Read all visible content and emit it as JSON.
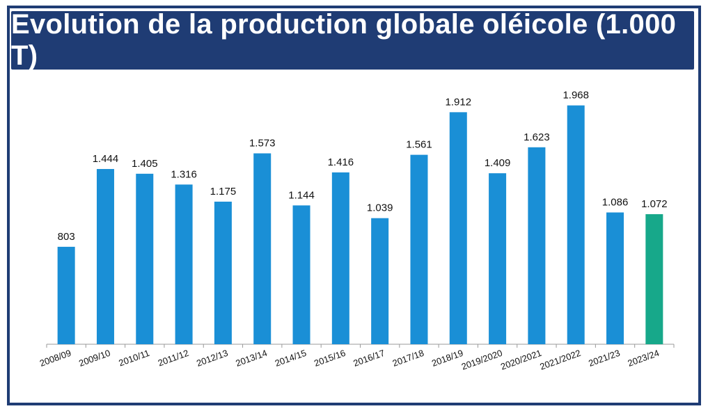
{
  "chart_data": {
    "type": "bar",
    "title": "Evolution de la production globale oléicole (1.000 T)",
    "xlabel": "",
    "ylabel": "",
    "ylim": [
      0,
      2000
    ],
    "grid": false,
    "categories": [
      "2008/09",
      "2009/10",
      "2010/11",
      "2011/12",
      "2012/13",
      "2013/14",
      "2014/15",
      "2015/16",
      "2016/17",
      "2017/18",
      "2018/19",
      "2019/2020",
      "2020/2021",
      "2021/2022",
      "2021/23",
      "2023/24"
    ],
    "values": [
      803,
      1444,
      1405,
      1316,
      1175,
      1573,
      1144,
      1416,
      1039,
      1561,
      1912,
      1409,
      1623,
      1968,
      1086,
      1072
    ],
    "value_labels": [
      "803",
      "1.444",
      "1.405",
      "1.316",
      "1.175",
      "1.573",
      "1.144",
      "1.416",
      "1.039",
      "1.561",
      "1.912",
      "1.409",
      "1.623",
      "1.968",
      "1.086",
      "1.072"
    ],
    "colors": {
      "bar": "#1a8fd6",
      "highlight": "#17a88a",
      "title_background": "#1f3c74",
      "frame": "#1f3c74"
    },
    "highlight_index": 15
  }
}
